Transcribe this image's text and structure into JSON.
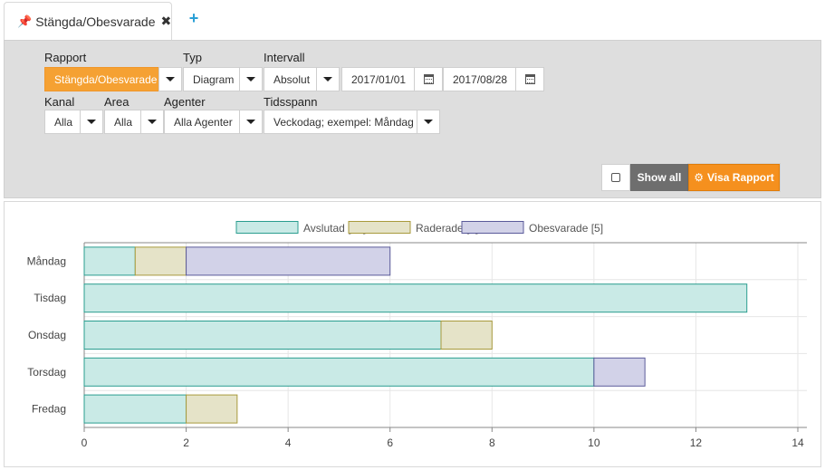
{
  "tabs": {
    "active_label": "Stängda/Obesvarade",
    "pin_icon": "pin-icon",
    "close_icon": "close-icon",
    "add_label": "+"
  },
  "filters": {
    "rapport": {
      "label": "Rapport",
      "value": "Stängda/Obesvarade"
    },
    "typ": {
      "label": "Typ",
      "value": "Diagram"
    },
    "intervall": {
      "label": "Intervall",
      "value": "Absolut",
      "from": "2017/01/01",
      "to": "2017/08/28"
    },
    "kanal": {
      "label": "Kanal",
      "value": "Alla"
    },
    "area": {
      "label": "Area",
      "value": "Alla"
    },
    "agenter": {
      "label": "Agenter",
      "value": "Alla Agenter"
    },
    "tidsspann": {
      "label": "Tidsspann",
      "value": "Veckodag; exempel: Måndag"
    }
  },
  "actions": {
    "show_all": "Show all",
    "visa_rapport": "Visa Rapport"
  },
  "colors": {
    "accent_orange": "#f5a133",
    "avslutad_fill": "#c9eae6",
    "avslutad_stroke": "#2a9d8f",
    "raderade_fill": "#e5e3c8",
    "raderade_stroke": "#a89a3c",
    "obesvarade_fill": "#d2d2e8",
    "obesvarade_stroke": "#5a5a9a"
  },
  "chart_data": {
    "type": "bar",
    "orientation": "horizontal",
    "stacked": true,
    "categories": [
      "Måndag",
      "Tisdag",
      "Onsdag",
      "Torsdag",
      "Fredag"
    ],
    "series": [
      {
        "name": "Avslutad [33]",
        "values": [
          1,
          13,
          7,
          10,
          2
        ]
      },
      {
        "name": "Raderade [3]",
        "values": [
          1,
          0,
          1,
          0,
          1
        ]
      },
      {
        "name": "Obesvarade [5]",
        "values": [
          4,
          0,
          0,
          1,
          0
        ]
      }
    ],
    "xlim": [
      0,
      14
    ],
    "xticks": [
      0,
      2,
      4,
      6,
      8,
      10,
      12,
      14
    ],
    "grid": true,
    "legend": "top-center"
  }
}
